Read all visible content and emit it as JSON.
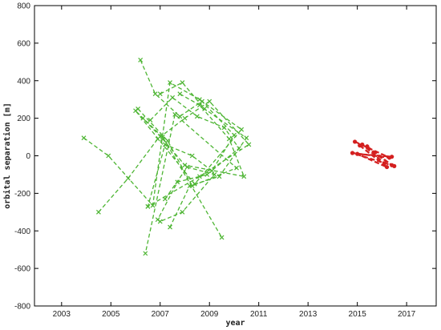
{
  "chart_data": {
    "type": "line",
    "xlabel": "year",
    "ylabel": "orbital separation [m]",
    "xlim": [
      2001.9,
      2018.2
    ],
    "ylim": [
      -800,
      800
    ],
    "xticks": [
      2003,
      2005,
      2007,
      2009,
      2011,
      2013,
      2015,
      2017
    ],
    "yticks": [
      -800,
      -600,
      -400,
      -200,
      0,
      200,
      400,
      600,
      800
    ],
    "grid": false,
    "series": [
      {
        "color": "#4db533",
        "marker": "x",
        "x": [
          2003.9,
          2004.9,
          2006.7,
          2007.4,
          2008.6,
          2010.3,
          2008.4,
          2006.0,
          2007.1,
          2009.5
        ],
        "y": [
          95,
          0,
          -265,
          390,
          300,
          140,
          -150,
          240,
          100,
          -435
        ]
      },
      {
        "color": "#4db533",
        "marker": "x",
        "x": [
          2004.5,
          2005.7,
          2006.9,
          2008.0,
          2009.0,
          2010.6,
          2008.6,
          2006.5
        ],
        "y": [
          -300,
          -120,
          90,
          200,
          290,
          60,
          -110,
          -270
        ]
      },
      {
        "color": "#4db533",
        "marker": "x",
        "x": [
          2006.2,
          2006.8,
          2007.8,
          2008.7,
          2010.0,
          2009.1,
          2008.3,
          2007.2,
          2006.5
        ],
        "y": [
          510,
          330,
          210,
          290,
          110,
          -80,
          0,
          60,
          -270
        ]
      },
      {
        "color": "#4db533",
        "marker": "x",
        "x": [
          2006.1,
          2007.3,
          2008.3,
          2010.1,
          2007.6,
          2006.4
        ],
        "y": [
          250,
          80,
          -160,
          -65,
          220,
          -520
        ]
      },
      {
        "color": "#4db533",
        "marker": "x",
        "x": [
          2007.0,
          2007.9,
          2008.8,
          2010.5,
          2009.4,
          2008.2,
          2007.4
        ],
        "y": [
          330,
          390,
          250,
          95,
          -110,
          -160,
          -380
        ]
      },
      {
        "color": "#4db533",
        "marker": "x",
        "x": [
          2006.6,
          2007.5,
          2008.5,
          2009.6,
          2010.2,
          2008.9,
          2007.7,
          2006.9
        ],
        "y": [
          190,
          310,
          210,
          150,
          40,
          -100,
          -140,
          -340
        ]
      },
      {
        "color": "#4db533",
        "marker": "x",
        "x": [
          2007.8,
          2008.6,
          2009.8,
          2010.4,
          2008.0,
          2007.1,
          2006.3
        ],
        "y": [
          330,
          270,
          90,
          -110,
          -50,
          90,
          200
        ]
      },
      {
        "color": "#4db533",
        "marker": "x",
        "x": [
          2007.2,
          2008.1,
          2009.2,
          2007.9,
          2007.0
        ],
        "y": [
          -230,
          -60,
          -100,
          -300,
          -350
        ]
      },
      {
        "color": "#d42020",
        "marker": "dot",
        "x": [
          2014.9,
          2016.3,
          2014.8,
          2016.5
        ],
        "y": [
          75,
          -10,
          15,
          -55
        ]
      },
      {
        "color": "#d42020",
        "marker": "dot",
        "x": [
          2015.1,
          2016.2,
          2015.0,
          2016.4
        ],
        "y": [
          55,
          -60,
          10,
          -5
        ]
      },
      {
        "color": "#d42020",
        "marker": "dot",
        "x": [
          2015.4,
          2016.4,
          2015.2,
          2016.1
        ],
        "y": [
          50,
          -50,
          60,
          -40
        ]
      }
    ]
  }
}
